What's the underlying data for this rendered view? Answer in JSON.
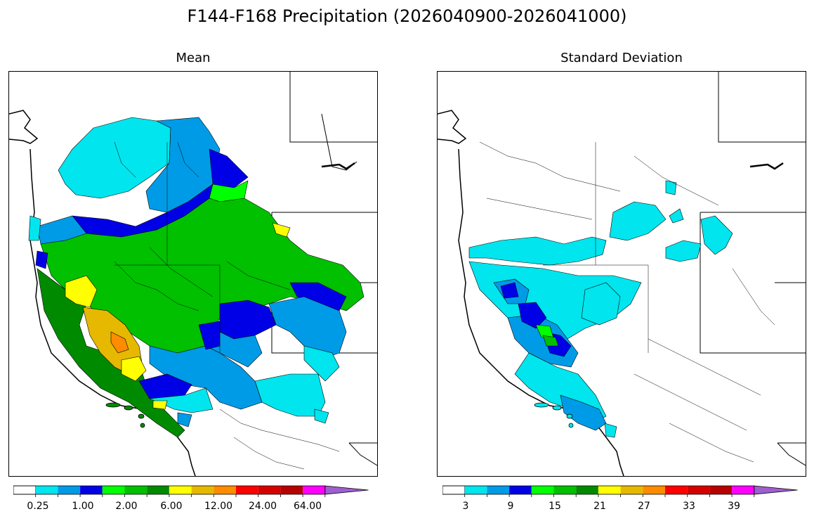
{
  "title": "F144-F168 Precipitation (2026040900-2026041000)",
  "panels": [
    {
      "title": "Mean",
      "colorbar": {
        "colors": [
          "#ffffff",
          "#00e5ee",
          "#009be6",
          "#0000e6",
          "#00ff00",
          "#00c000",
          "#008a00",
          "#ffff00",
          "#e6b900",
          "#ff8c00",
          "#ff0000",
          "#d40000",
          "#b70000",
          "#ff00ff",
          "#9f5fcf"
        ],
        "tick_labels": [
          "0.25",
          "1.00",
          "2.00",
          "6.00",
          "12.00",
          "24.00",
          "64.00"
        ],
        "extend": "max"
      }
    },
    {
      "title": "Standard Deviation",
      "colorbar": {
        "colors": [
          "#ffffff",
          "#00e5ee",
          "#009be6",
          "#0000e6",
          "#00ff00",
          "#00c000",
          "#008a00",
          "#ffff00",
          "#e6b900",
          "#ff8c00",
          "#ff0000",
          "#d40000",
          "#b70000",
          "#ff00ff",
          "#9f5fcf"
        ],
        "tick_labels": [
          "3",
          "9",
          "15",
          "21",
          "27",
          "33",
          "39"
        ],
        "extend": "max"
      }
    }
  ]
}
